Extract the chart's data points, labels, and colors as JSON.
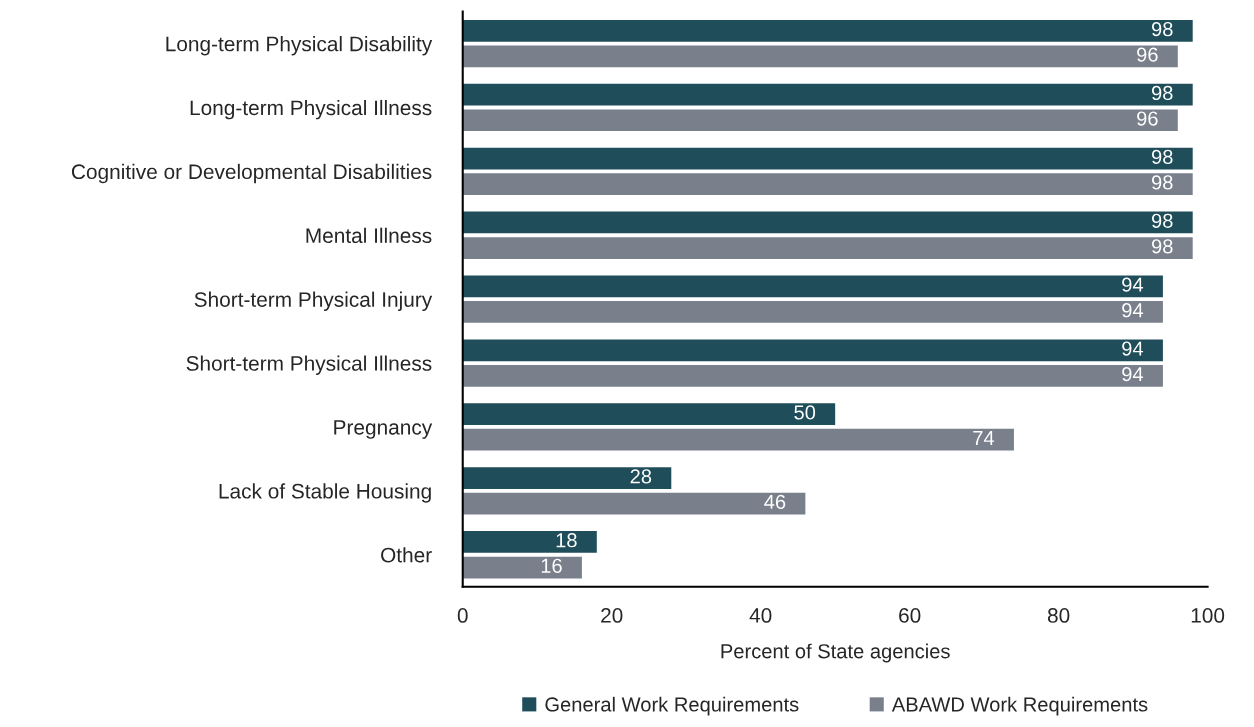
{
  "chart_data": {
    "type": "bar",
    "orientation": "horizontal",
    "xlabel": "Percent of State agencies",
    "categories": [
      "Long-term Physical Disability",
      "Long-term Physical Illness",
      "Cognitive or Developmental Disabilities",
      "Mental Illness",
      "Short-term Physical Injury",
      "Short-term Physical Illness",
      "Pregnancy",
      "Lack of Stable Housing",
      "Other"
    ],
    "series": [
      {
        "name": "General Work Requirements",
        "color": "#1f4e5a",
        "values": [
          98,
          98,
          98,
          98,
          94,
          94,
          50,
          28,
          18
        ]
      },
      {
        "name": "ABAWD Work Requirements",
        "color": "#7a7f8c",
        "values": [
          96,
          96,
          98,
          98,
          94,
          94,
          74,
          46,
          16
        ]
      }
    ],
    "xlim": [
      0,
      100
    ],
    "xticks": [
      0,
      20,
      40,
      60,
      80,
      100
    ],
    "data_labels": true,
    "legend": "bottom",
    "grid": false
  }
}
